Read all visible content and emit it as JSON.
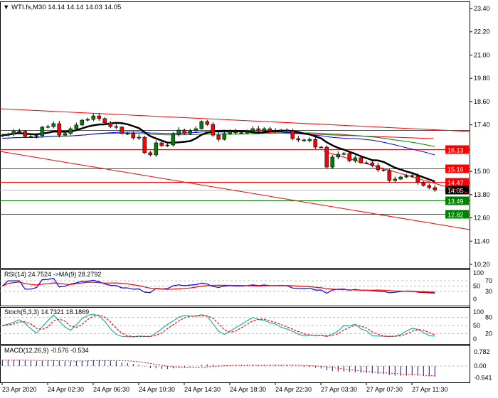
{
  "header": {
    "symbol_menu_icon": "triangle-down-icon",
    "title": "WTI.fs,M30",
    "ohlc": "14.14 14.14 14.03 14.05"
  },
  "colors": {
    "bull": "#008000",
    "bear": "#ff0000",
    "ma_fast": "#000000",
    "ma_mid": "#0000ff",
    "ma_slow": "#008000",
    "level_red": "#ff0000",
    "level_green": "#008000",
    "rsi": "#0000ff",
    "rsi_ma": "#ff0000",
    "stoch_main": "#20b2aa",
    "stoch_signal": "#ff0000",
    "macd_hist": "#0000ff",
    "macd_signal": "#ff0000"
  },
  "price_axis": {
    "min": 10.2,
    "max": 23.4,
    "ticks": [
      "23.40",
      "22.20",
      "21.00",
      "19.80",
      "18.60",
      "17.40",
      "15.00",
      "13.80",
      "12.60",
      "11.40",
      "10.20"
    ]
  },
  "closes": [
    16.87,
    16.91,
    17.06,
    17.06,
    16.8,
    16.8,
    16.84,
    17.28,
    17.31,
    17.46,
    16.87,
    16.95,
    17.2,
    17.39,
    17.64,
    17.68,
    17.86,
    17.72,
    17.5,
    17.31,
    17.28,
    16.95,
    16.95,
    16.73,
    16.76,
    15.96,
    15.85,
    16.47,
    16.32,
    16.36,
    16.91,
    17.13,
    16.95,
    17.09,
    17.2,
    17.57,
    17.42,
    16.87,
    16.65,
    16.95,
    17.06,
    16.99,
    16.98,
    17.06,
    17.2,
    17.09,
    17.2,
    17.09,
    17.09,
    17.13,
    17.09,
    16.69,
    16.62,
    16.58,
    16.65,
    16.25,
    16.25,
    15.22,
    15.74,
    15.88,
    15.92,
    15.55,
    15.7,
    15.44,
    15.44,
    15.3,
    15.08,
    15.04,
    14.53,
    14.6,
    14.71,
    14.78,
    14.75,
    14.42,
    14.27,
    14.16,
    14.05
  ],
  "levels": [
    {
      "price": 17.13,
      "color": "#ff0000",
      "label": ""
    },
    {
      "price": 16.13,
      "color": "#ff0000",
      "label": "16.13"
    },
    {
      "price": 15.16,
      "color": "#ff0000",
      "label": "15.16"
    },
    {
      "price": 14.47,
      "color": "#ff0000",
      "label": "14.47"
    },
    {
      "price": 14.05,
      "color": "#c0c0c0",
      "label": "14.05",
      "label_bg": "#000000"
    },
    {
      "price": 13.49,
      "color": "#008000",
      "label": "13.49"
    },
    {
      "price": 12.82,
      "color": "#008000",
      "label": "12.82"
    }
  ],
  "trendlines": [
    {
      "from": [
        -0.4,
        18.23
      ],
      "to": [
        82,
        17.06
      ]
    },
    {
      "from": [
        40.8,
        17.06
      ],
      "to": [
        75.8,
        16.69
      ]
    },
    {
      "from": [
        -0.4,
        16.03
      ],
      "to": [
        82,
        12.0
      ]
    },
    {
      "from": [
        56.5,
        16.03
      ],
      "to": [
        82,
        13.87
      ]
    }
  ],
  "rsi": {
    "label": "RSI(14) 24.7524  ->MA(9) 28.2792",
    "ticks": [
      "100",
      "70",
      "50",
      "30",
      "0"
    ]
  },
  "stoch": {
    "label": "Stoch(5,3,3) 14.7321 18.1869",
    "ticks": [
      "100",
      "80",
      "50",
      "20",
      "0"
    ]
  },
  "macd": {
    "label": "MACD(12,26,9) -0.576 -0.534",
    "ticks": [
      "0.782",
      "0.00",
      "-0.641"
    ]
  },
  "time_axis": [
    "23 Apr 2020",
    "24 Apr 02:30",
    "24 Apr 06:30",
    "24 Apr 10:30",
    "24 Apr 14:30",
    "24 Apr 18:30",
    "24 Apr 22:30",
    "27 Apr 03:30",
    "27 Apr 07:30",
    "27 Apr 11:30"
  ]
}
